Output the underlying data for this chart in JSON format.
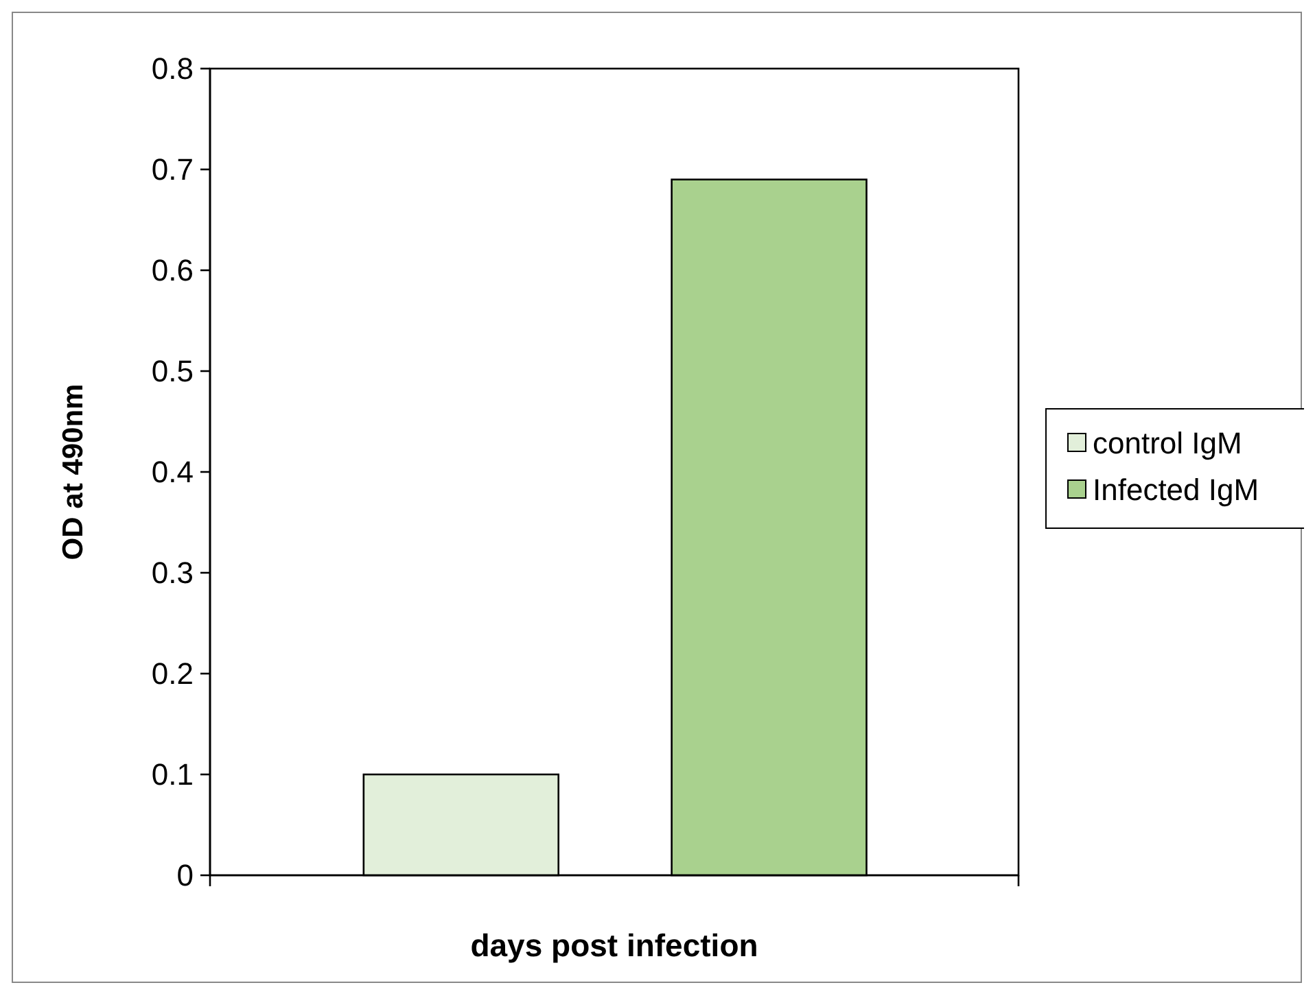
{
  "chart_data": {
    "type": "bar",
    "categories": [
      null
    ],
    "series": [
      {
        "name": "control IgM",
        "color": "#e2efda",
        "values": [
          0.1
        ]
      },
      {
        "name": "Infected IgM",
        "color": "#a9d18e",
        "values": [
          0.69
        ]
      }
    ],
    "xlabel": "days post infection",
    "ylabel": "OD at 490nm",
    "ylim": [
      0,
      0.8
    ],
    "yticks": [
      0,
      0.1,
      0.2,
      0.3,
      0.4,
      0.5,
      0.6,
      0.7,
      0.8
    ],
    "grid": false,
    "legend": "right"
  }
}
